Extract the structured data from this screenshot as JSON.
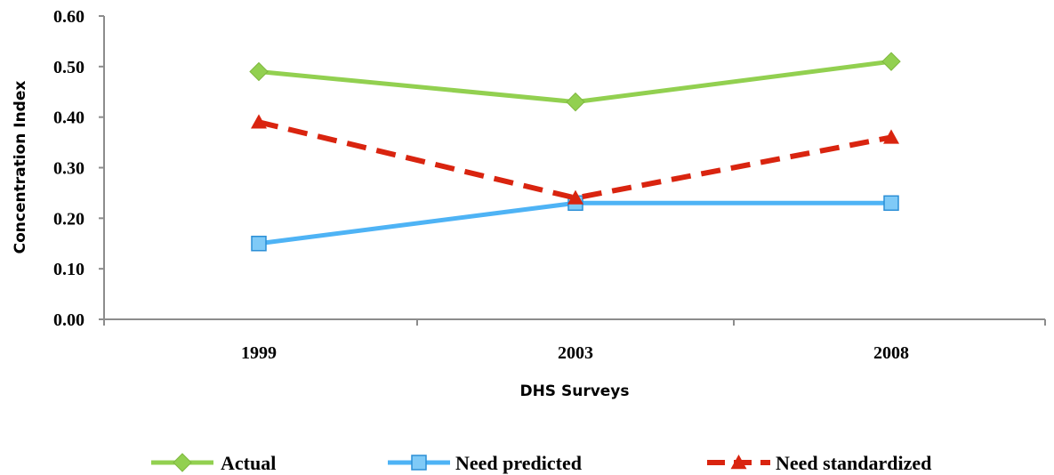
{
  "chart_data": {
    "type": "line",
    "title": "",
    "xlabel": "DHS Surveys",
    "ylabel": "Concentration Index",
    "categories": [
      "1999",
      "2003",
      "2008"
    ],
    "ylim": [
      0,
      0.6
    ],
    "yticks": [
      "0.00",
      "0.10",
      "0.20",
      "0.30",
      "0.40",
      "0.50",
      "0.60"
    ],
    "grid": false,
    "legend_position": "bottom",
    "series": [
      {
        "name": "Actual",
        "values": [
          0.49,
          0.43,
          0.51
        ],
        "color": "#92d050",
        "marker": "diamond",
        "dash": "solid"
      },
      {
        "name": "Need predicted",
        "values": [
          0.15,
          0.23,
          0.23
        ],
        "color": "#4eb3f5",
        "marker": "square",
        "dash": "solid"
      },
      {
        "name": "Need standardized",
        "values": [
          0.39,
          0.24,
          0.36
        ],
        "color": "#d9240f",
        "marker": "triangle",
        "dash": "dashed"
      }
    ]
  }
}
